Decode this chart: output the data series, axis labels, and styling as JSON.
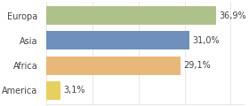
{
  "categories": [
    "Europa",
    "Asia",
    "Africa",
    "America"
  ],
  "values": [
    36.9,
    31.0,
    29.1,
    3.1
  ],
  "labels": [
    "36,9%",
    "31,0%",
    "29,1%",
    "3,1%"
  ],
  "bar_colors": [
    "#afc18a",
    "#7090bc",
    "#e8b87a",
    "#e8d060"
  ],
  "background_color": "#ffffff",
  "xlim": [
    0,
    43
  ],
  "bar_height": 0.75,
  "label_fontsize": 7.0,
  "tick_fontsize": 7.0,
  "grid_color": "#dddddd"
}
